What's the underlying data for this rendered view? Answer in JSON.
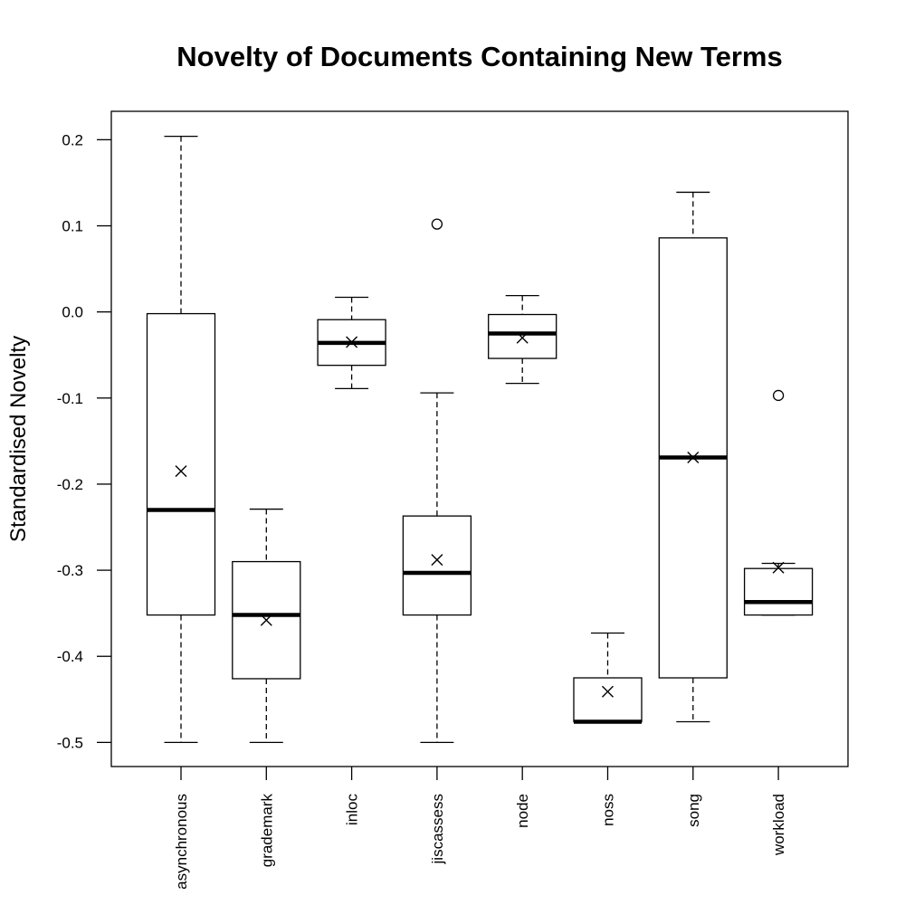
{
  "chart_data": {
    "type": "box",
    "title": "Novelty of Documents Containing New Terms",
    "xlabel": "",
    "ylabel": "Standardised Novelty",
    "ylim": [
      -0.528,
      0.233
    ],
    "yticks": [
      0.2,
      0.1,
      0.0,
      -0.1,
      -0.2,
      -0.3,
      -0.4,
      -0.5
    ],
    "ytick_labels": [
      "0.2",
      "0.1",
      "0.0",
      "-0.1",
      "-0.2",
      "-0.3",
      "-0.4",
      "-0.5"
    ],
    "grid": false,
    "legend": "none",
    "categories": [
      "asynchronous",
      "grademark",
      "inloc",
      "jiscassess",
      "node",
      "noss",
      "song",
      "workload"
    ],
    "boxes": [
      {
        "category": "asynchronous",
        "whisker_low": -0.5,
        "q1": -0.352,
        "median": -0.23,
        "q3": -0.002,
        "whisker_high": 0.204,
        "mean": -0.185,
        "outliers": []
      },
      {
        "category": "grademark",
        "whisker_low": -0.5,
        "q1": -0.426,
        "median": -0.352,
        "q3": -0.29,
        "whisker_high": -0.229,
        "mean": -0.358,
        "outliers": []
      },
      {
        "category": "inloc",
        "whisker_low": -0.089,
        "q1": -0.062,
        "median": -0.036,
        "q3": -0.009,
        "whisker_high": 0.017,
        "mean": -0.035,
        "outliers": []
      },
      {
        "category": "jiscassess",
        "whisker_low": -0.5,
        "q1": -0.352,
        "median": -0.303,
        "q3": -0.237,
        "whisker_high": -0.094,
        "mean": -0.288,
        "outliers": [
          0.102
        ]
      },
      {
        "category": "node",
        "whisker_low": -0.083,
        "q1": -0.054,
        "median": -0.025,
        "q3": -0.003,
        "whisker_high": 0.019,
        "mean": -0.03,
        "outliers": []
      },
      {
        "category": "noss",
        "whisker_low": -0.476,
        "q1": -0.476,
        "median": -0.476,
        "q3": -0.425,
        "whisker_high": -0.373,
        "mean": -0.441,
        "outliers": []
      },
      {
        "category": "song",
        "whisker_low": -0.476,
        "q1": -0.425,
        "median": -0.169,
        "q3": 0.086,
        "whisker_high": 0.139,
        "mean": -0.169,
        "outliers": []
      },
      {
        "category": "workload",
        "whisker_low": -0.352,
        "q1": -0.352,
        "median": -0.337,
        "q3": -0.298,
        "whisker_high": -0.292,
        "mean": -0.297,
        "outliers": [
          -0.097
        ]
      }
    ]
  }
}
